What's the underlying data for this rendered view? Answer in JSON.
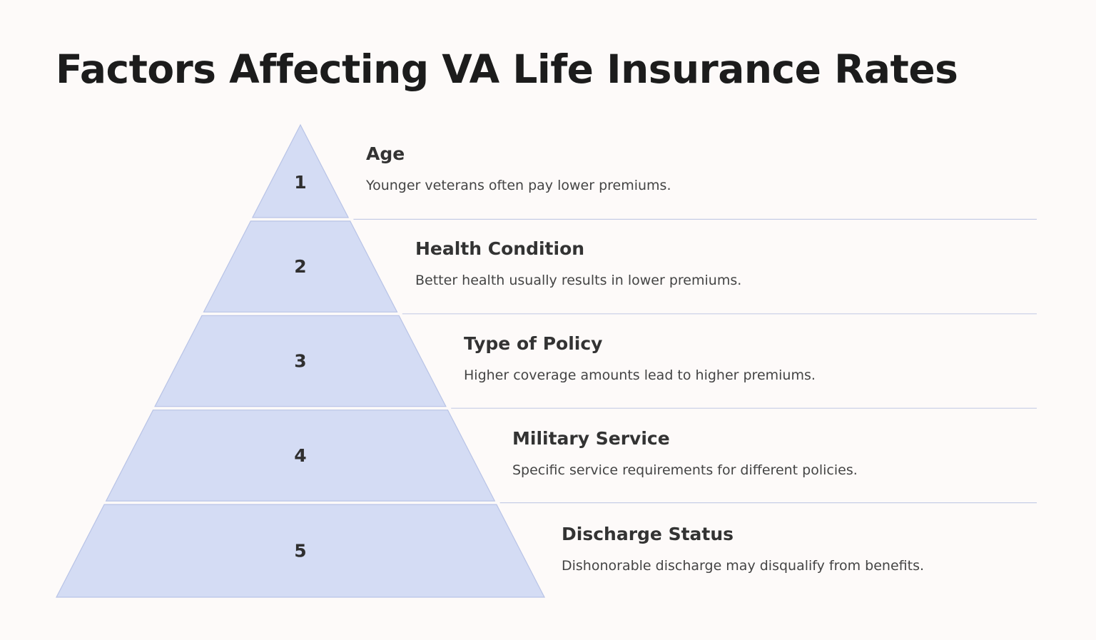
{
  "title": "Factors Affecting VA Life Insurance Rates",
  "colors": {
    "tier_fill": "#d4dcf4",
    "tier_stroke": "#b8c3e6",
    "divider": "#c6cde6",
    "background": "#fdfaf9"
  },
  "levels": [
    {
      "number": "1",
      "heading": "Age",
      "description": "Younger veterans often pay lower premiums."
    },
    {
      "number": "2",
      "heading": "Health Condition",
      "description": "Better health usually results in lower premiums."
    },
    {
      "number": "3",
      "heading": "Type of Policy",
      "description": "Higher coverage amounts lead to higher premiums."
    },
    {
      "number": "4",
      "heading": "Military Service",
      "description": "Specific service requirements for different policies."
    },
    {
      "number": "5",
      "heading": "Discharge Status",
      "description": "Dishonorable discharge may disqualify from benefits."
    }
  ]
}
